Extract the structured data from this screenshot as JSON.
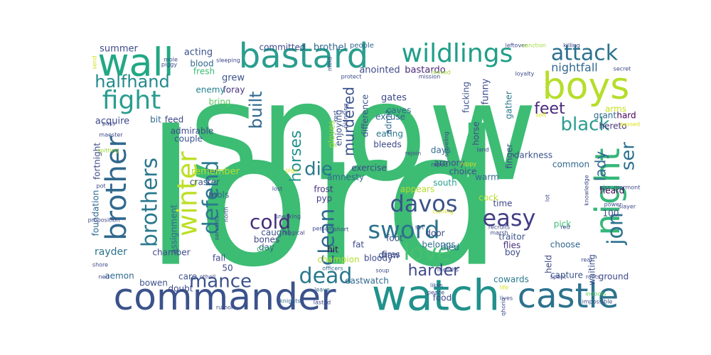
{
  "wordcloud": {
    "words": [
      {
        "text": "snow",
        "color": "#3dbc74"
      },
      {
        "text": "lord",
        "color": "#3dbc74"
      },
      {
        "text": "wall",
        "color": "#22a884"
      },
      {
        "text": "bastard",
        "color": "#2a9d8f"
      },
      {
        "text": "wildlings",
        "color": "#1f9e89"
      },
      {
        "text": "attack",
        "color": "#2c728e"
      },
      {
        "text": "boys",
        "color": "#b5de2b"
      },
      {
        "text": "fight",
        "color": "#2a9d8f"
      },
      {
        "text": "halfhand",
        "color": "#238a8d"
      },
      {
        "text": "commander",
        "color": "#3b528b"
      },
      {
        "text": "watch",
        "color": "#21918c"
      },
      {
        "text": "castle",
        "color": "#2c728e"
      },
      {
        "text": "night",
        "color": "#35b779"
      },
      {
        "text": "brother",
        "color": "#31688e"
      },
      {
        "text": "brothers",
        "color": "#2a788e"
      },
      {
        "text": "winter",
        "color": "#bddf26"
      },
      {
        "text": "defend",
        "color": "#2a788e"
      },
      {
        "text": "davos",
        "color": "#3b528b"
      },
      {
        "text": "sword",
        "color": "#2c728e"
      },
      {
        "text": "love",
        "color": "#46c06f"
      },
      {
        "text": "easy",
        "color": "#433e85"
      },
      {
        "text": "jon",
        "color": "#2c728e"
      },
      {
        "text": "cold",
        "color": "#472d7b"
      },
      {
        "text": "clean",
        "color": "#31688e"
      },
      {
        "text": "dead",
        "color": "#2a788e"
      },
      {
        "text": "mance",
        "color": "#3b528b"
      },
      {
        "text": "black",
        "color": "#2a9d8f"
      },
      {
        "text": "feet",
        "color": "#482878"
      },
      {
        "text": "ser",
        "color": "#2c728e"
      },
      {
        "text": "lady",
        "color": "#31688e"
      },
      {
        "text": "die",
        "color": "#2a788e"
      },
      {
        "text": "built",
        "color": "#31688e"
      },
      {
        "text": "horses",
        "color": "#21918c"
      },
      {
        "text": "harder",
        "color": "#3e4989"
      },
      {
        "text": "murdered",
        "color": "#3b528b"
      },
      {
        "text": "nightfall",
        "color": "#31688e"
      },
      {
        "text": "summer",
        "color": "#3e4989"
      },
      {
        "text": "acting",
        "color": "#3b528b"
      },
      {
        "text": "committed",
        "color": "#3e4989"
      },
      {
        "text": "brothel",
        "color": "#31688e"
      },
      {
        "text": "people",
        "color": "#31688e"
      },
      {
        "text": "anointed",
        "color": "#3e4989"
      },
      {
        "text": "bastardo",
        "color": "#482878"
      },
      {
        "text": "funny",
        "color": "#3e4989"
      },
      {
        "text": "blood",
        "color": "#31688e"
      },
      {
        "text": "fresh",
        "color": "#3dbc74"
      },
      {
        "text": "grew",
        "color": "#3b528b"
      },
      {
        "text": "foray",
        "color": "#46327e"
      },
      {
        "text": "enemy",
        "color": "#26828e"
      },
      {
        "text": "bring",
        "color": "#5ec962"
      },
      {
        "text": "gates",
        "color": "#3e4989"
      },
      {
        "text": "caves",
        "color": "#31688e"
      },
      {
        "text": "excuse",
        "color": "#31688e"
      },
      {
        "text": "eating",
        "color": "#2a788e"
      },
      {
        "text": "bleeds",
        "color": "#3e4989"
      },
      {
        "text": "admit",
        "color": "#31688e"
      },
      {
        "text": "difference",
        "color": "#3b528b"
      },
      {
        "text": "enjoying",
        "color": "#3b528b"
      },
      {
        "text": "gloves",
        "color": "#9fda3a"
      },
      {
        "text": "fucking",
        "color": "#3b528b"
      },
      {
        "text": "gather",
        "color": "#2a788e"
      },
      {
        "text": "finger",
        "color": "#3e4989"
      },
      {
        "text": "hereto",
        "color": "#46327e"
      },
      {
        "text": "grant",
        "color": "#31688e"
      },
      {
        "text": "hard",
        "color": "#440154"
      },
      {
        "text": "arms",
        "color": "#c8e020"
      },
      {
        "text": "acquire",
        "color": "#3e4989"
      },
      {
        "text": "bit",
        "color": "#31688e"
      },
      {
        "text": "feed",
        "color": "#3e4989"
      },
      {
        "text": "admirable",
        "color": "#3e4989"
      },
      {
        "text": "couple",
        "color": "#3b528b"
      },
      {
        "text": "fortnight",
        "color": "#3e4989"
      },
      {
        "text": "foundation",
        "color": "#31688e"
      },
      {
        "text": "remember",
        "color": "#b5de2b"
      },
      {
        "text": "craster",
        "color": "#3b528b"
      },
      {
        "text": "fools",
        "color": "#31688e"
      },
      {
        "text": "amnesty",
        "color": "#31688e"
      },
      {
        "text": "frost",
        "color": "#46327e"
      },
      {
        "text": "pyp",
        "color": "#433e85"
      },
      {
        "text": "day",
        "color": "#3b528b"
      },
      {
        "text": "bones",
        "color": "#3e4989"
      },
      {
        "text": "caught",
        "color": "#3b528b"
      },
      {
        "text": "country",
        "color": "#3dbc74"
      },
      {
        "text": "hit",
        "color": "#440154"
      },
      {
        "text": "assignment",
        "color": "#31688e"
      },
      {
        "text": "chamber",
        "color": "#3e4989"
      },
      {
        "text": "fall",
        "color": "#3e4989"
      },
      {
        "text": "rayder",
        "color": "#2c728e"
      },
      {
        "text": "50",
        "color": "#3e4989"
      },
      {
        "text": "care",
        "color": "#3b528b"
      },
      {
        "text": "doubt",
        "color": "#3e4989"
      },
      {
        "text": "aemon",
        "color": "#31688e"
      },
      {
        "text": "bowen",
        "color": "#3b528b"
      },
      {
        "text": "exercise",
        "color": "#3e4989"
      },
      {
        "text": "days",
        "color": "#31688e"
      },
      {
        "text": "armory",
        "color": "#3e4989"
      },
      {
        "text": "choice",
        "color": "#3b528b"
      },
      {
        "text": "south",
        "color": "#2a9d8f"
      },
      {
        "text": "warm",
        "color": "#31688e"
      },
      {
        "text": "time",
        "color": "#3e4989"
      },
      {
        "text": "traitor",
        "color": "#3b528b"
      },
      {
        "text": "flies",
        "color": "#46327e"
      },
      {
        "text": "pick",
        "color": "#3dbc74"
      },
      {
        "text": "choose",
        "color": "#31688e"
      },
      {
        "text": "boy",
        "color": "#3e4989"
      },
      {
        "text": "waiting",
        "color": "#3b528b"
      },
      {
        "text": "capture",
        "color": "#3b528b"
      },
      {
        "text": "cowards",
        "color": "#2a788e"
      },
      {
        "text": "eastwatch",
        "color": "#31688e"
      },
      {
        "text": "draw",
        "color": "#3e4989"
      },
      {
        "text": "food",
        "color": "#3e4989"
      },
      {
        "text": "fat",
        "color": "#3e4989"
      },
      {
        "text": "fires",
        "color": "#3b528b"
      },
      {
        "text": "bloody",
        "color": "#3e4989"
      },
      {
        "text": "foot",
        "color": "#3b528b"
      },
      {
        "text": "belongs",
        "color": "#2c728e"
      },
      {
        "text": "champion",
        "color": "#b5de2b"
      },
      {
        "text": "appears",
        "color": "#b5de2b"
      },
      {
        "text": "died",
        "color": "#31688e"
      },
      {
        "text": "door",
        "color": "#3e4989"
      },
      {
        "text": "horse",
        "color": "#3e4989"
      },
      {
        "text": "cock",
        "color": "#b5de2b"
      },
      {
        "text": "darkness",
        "color": "#3b528b"
      },
      {
        "text": "common",
        "color": "#31688e"
      },
      {
        "text": "heard",
        "color": "#440154"
      },
      {
        "text": "100",
        "color": "#3e4989"
      },
      {
        "text": "ground",
        "color": "#3e4989"
      },
      {
        "text": "held",
        "color": "#3e4989"
      },
      {
        "text": "knights",
        "color": "#31688e"
      },
      {
        "text": "officers",
        "color": "#31688e"
      },
      {
        "text": "soup",
        "color": "#3e4989"
      },
      {
        "text": "months",
        "color": "#3e4989"
      },
      {
        "text": "likes",
        "color": "#3b528b"
      },
      {
        "text": "peace",
        "color": "#3e4989"
      },
      {
        "text": "leave",
        "color": "#31688e"
      },
      {
        "text": "lasted",
        "color": "#3e4989"
      },
      {
        "text": "lives",
        "color": "#3e4989"
      },
      {
        "text": "life",
        "color": "#d8e219"
      },
      {
        "text": "indoors",
        "color": "#5ec962"
      },
      {
        "text": "impossible",
        "color": "#3b528b"
      },
      {
        "text": "rumor",
        "color": "#3e4989"
      },
      {
        "text": "ned",
        "color": "#3e4989"
      },
      {
        "text": "shore",
        "color": "#3e4989"
      },
      {
        "text": "othell",
        "color": "#3e4989"
      },
      {
        "text": "lost",
        "color": "#3e4989"
      },
      {
        "text": "magical",
        "color": "#3e4989"
      },
      {
        "text": "person",
        "color": "#3e4989"
      },
      {
        "text": "short",
        "color": "#3e4989"
      },
      {
        "text": "set",
        "color": "#3e4989"
      },
      {
        "text": "marsh",
        "color": "#3e4989"
      },
      {
        "text": "recruits",
        "color": "#3e4989"
      },
      {
        "text": "red",
        "color": "#3e4989"
      },
      {
        "text": "real",
        "color": "#3e4989"
      },
      {
        "text": "roots",
        "color": "#3e4989"
      },
      {
        "text": "spent",
        "color": "#3e4989"
      },
      {
        "text": "power",
        "color": "#3e4989"
      },
      {
        "text": "slayer",
        "color": "#3e4989"
      },
      {
        "text": "piss",
        "color": "#3e4989"
      },
      {
        "text": "mormont",
        "color": "#3e4989"
      },
      {
        "text": "passed",
        "color": "#d8e219"
      },
      {
        "text": "soft",
        "color": "#d8e219"
      },
      {
        "text": "loyalty",
        "color": "#3e4989"
      },
      {
        "text": "secret",
        "color": "#3e4989"
      },
      {
        "text": "killing",
        "color": "#3e4989"
      },
      {
        "text": "leftover",
        "color": "#3e4989"
      },
      {
        "text": "sanction",
        "color": "#9fda3a"
      },
      {
        "text": "reaved",
        "color": "#9fda3a"
      },
      {
        "text": "mission",
        "color": "#3e4989"
      },
      {
        "text": "protect",
        "color": "#3e4989"
      },
      {
        "text": "mind",
        "color": "#3e4989"
      },
      {
        "text": "sleeping",
        "color": "#3e4989"
      },
      {
        "text": "mole",
        "color": "#3e4989"
      },
      {
        "text": "piggy",
        "color": "#3e4989"
      },
      {
        "text": "send",
        "color": "#d8e219"
      },
      {
        "text": "spitting",
        "color": "#9fda3a"
      },
      {
        "text": "pass",
        "color": "#3e4989"
      },
      {
        "text": "maester",
        "color": "#3e4989"
      },
      {
        "text": "pot",
        "color": "#3e4989"
      },
      {
        "text": "proposition",
        "color": "#3e4989"
      },
      {
        "text": "job",
        "color": "#3e4989"
      },
      {
        "text": "north",
        "color": "#3e4989"
      },
      {
        "text": "servants",
        "color": "#3e4989"
      },
      {
        "text": "sneaking",
        "color": "#3e4989"
      },
      {
        "text": "pigs",
        "color": "#d8e219"
      },
      {
        "text": "rest",
        "color": "#3e4989"
      },
      {
        "text": "planning",
        "color": "#3e4989"
      },
      {
        "text": "sniveling",
        "color": "#3e4989"
      },
      {
        "text": "rejoin",
        "color": "#3e4989"
      },
      {
        "text": "raped",
        "color": "#3e4989"
      },
      {
        "text": "nippy",
        "color": "#d8e219"
      },
      {
        "text": "land",
        "color": "#3e4989"
      },
      {
        "text": "lot",
        "color": "#3e4989"
      },
      {
        "text": "knowledge",
        "color": "#3e4989"
      },
      {
        "text": "coming",
        "color": "#d8e219"
      },
      {
        "text": "qhorin",
        "color": "#3e4989"
      },
      {
        "text": "poachers",
        "color": "#d8e219"
      }
    ]
  }
}
